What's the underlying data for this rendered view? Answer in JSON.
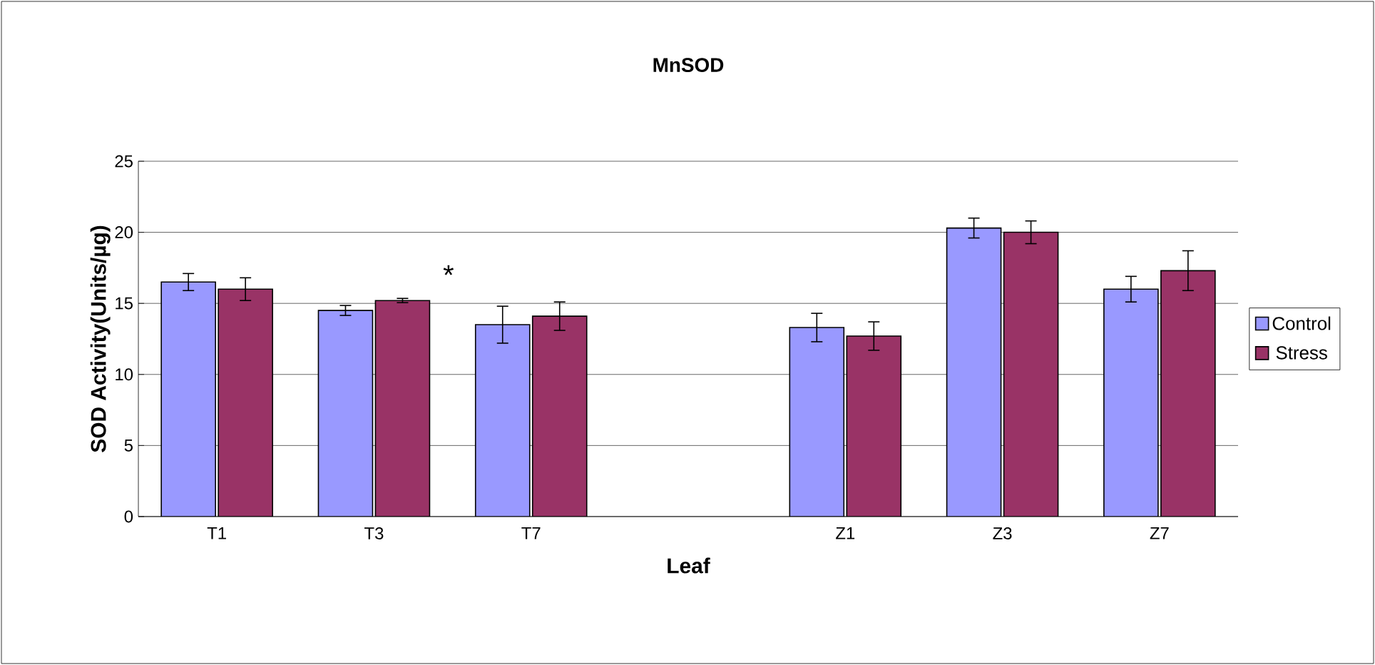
{
  "chart_data": {
    "type": "bar",
    "title": "MnSOD",
    "xlabel": "Leaf",
    "ylabel": "SOD Activity(Units/µg)",
    "categories": [
      "T1",
      "T3",
      "T7",
      null,
      "Z1",
      "Z3",
      "Z7"
    ],
    "series": [
      {
        "name": "Control",
        "color": "#9999ff",
        "values": [
          16.5,
          14.5,
          13.5,
          null,
          13.3,
          20.3,
          16.0
        ],
        "errors": [
          0.6,
          0.35,
          1.3,
          null,
          1.0,
          0.7,
          0.9
        ]
      },
      {
        "name": "Stress",
        "color": "#993366",
        "values": [
          16.0,
          15.2,
          14.1,
          null,
          12.7,
          20.0,
          17.3
        ],
        "errors": [
          0.8,
          0.15,
          1.0,
          null,
          1.0,
          0.8,
          1.4
        ]
      }
    ],
    "ylim": [
      0,
      25
    ],
    "yticks": [
      0,
      5,
      10,
      15,
      20,
      25
    ],
    "grid": "y",
    "legend": "right",
    "annotations": [
      "*"
    ]
  }
}
